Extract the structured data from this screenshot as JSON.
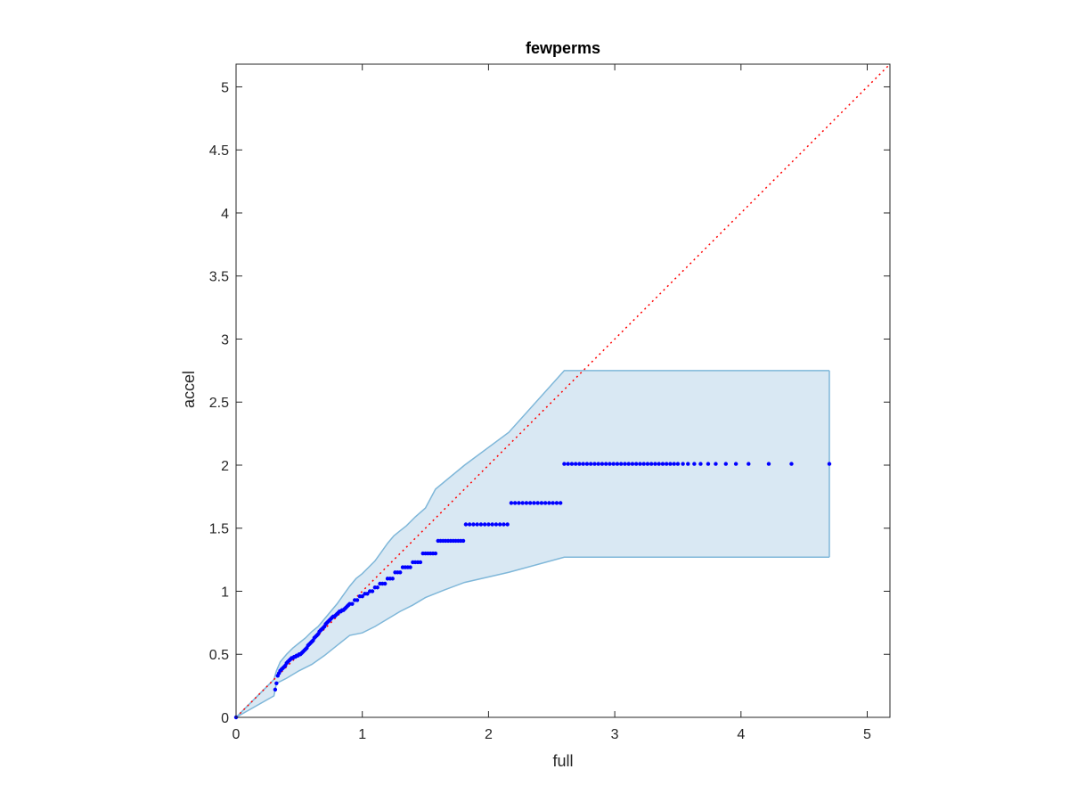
{
  "chart_data": {
    "type": "scatter",
    "title": "fewperms",
    "xlabel": "full",
    "ylabel": "accel",
    "xlim": [
      0,
      5.18
    ],
    "ylim": [
      0,
      5.18
    ],
    "x_ticks": [
      0,
      1,
      2,
      3,
      4,
      5
    ],
    "x_tick_labels": [
      "0",
      "1",
      "2",
      "3",
      "4",
      "5"
    ],
    "y_ticks": [
      0,
      0.5,
      1,
      1.5,
      2,
      2.5,
      3,
      3.5,
      4,
      4.5,
      5
    ],
    "y_tick_labels": [
      "0",
      "0.5",
      "1",
      "1.5",
      "2",
      "2.5",
      "3",
      "3.5",
      "4",
      "4.5",
      "5"
    ],
    "grid": false,
    "colors": {
      "points": "#0000ff",
      "band_fill": "#d9e8f3",
      "band_edge": "#7fb7d9",
      "reference_line": "#ff0000",
      "axes": "#262626"
    },
    "reference_line": {
      "type": "identity",
      "from": [
        0,
        0
      ],
      "to": [
        5.18,
        5.18
      ],
      "style": "dotted"
    },
    "band": {
      "upper": [
        [
          0,
          0
        ],
        [
          0.3,
          0.3
        ],
        [
          0.32,
          0.37
        ],
        [
          0.35,
          0.44
        ],
        [
          0.4,
          0.5
        ],
        [
          0.45,
          0.55
        ],
        [
          0.5,
          0.59
        ],
        [
          0.55,
          0.63
        ],
        [
          0.6,
          0.68
        ],
        [
          0.65,
          0.72
        ],
        [
          0.7,
          0.78
        ],
        [
          0.75,
          0.84
        ],
        [
          0.8,
          0.9
        ],
        [
          0.85,
          0.97
        ],
        [
          0.9,
          1.04
        ],
        [
          0.95,
          1.1
        ],
        [
          1.0,
          1.14
        ],
        [
          1.05,
          1.19
        ],
        [
          1.1,
          1.24
        ],
        [
          1.15,
          1.31
        ],
        [
          1.2,
          1.38
        ],
        [
          1.25,
          1.44
        ],
        [
          1.3,
          1.48
        ],
        [
          1.35,
          1.52
        ],
        [
          1.42,
          1.59
        ],
        [
          1.5,
          1.66
        ],
        [
          1.58,
          1.81
        ],
        [
          1.81,
          2.0
        ],
        [
          2.16,
          2.26
        ],
        [
          2.6,
          2.75
        ],
        [
          4.7,
          2.75
        ]
      ],
      "lower": [
        [
          0,
          0
        ],
        [
          0.3,
          0.17
        ],
        [
          0.32,
          0.27
        ],
        [
          0.4,
          0.31
        ],
        [
          0.5,
          0.37
        ],
        [
          0.6,
          0.42
        ],
        [
          0.7,
          0.49
        ],
        [
          0.8,
          0.57
        ],
        [
          0.85,
          0.61
        ],
        [
          0.9,
          0.65
        ],
        [
          1.0,
          0.67
        ],
        [
          1.1,
          0.72
        ],
        [
          1.2,
          0.78
        ],
        [
          1.3,
          0.84
        ],
        [
          1.4,
          0.89
        ],
        [
          1.5,
          0.95
        ],
        [
          1.65,
          1.01
        ],
        [
          1.81,
          1.07
        ],
        [
          2.16,
          1.15
        ],
        [
          2.6,
          1.27
        ],
        [
          4.7,
          1.27
        ]
      ]
    },
    "series": [
      {
        "x": [
          0,
          0.31,
          0.32,
          0.33,
          0.34,
          0.35,
          0.36,
          0.37,
          0.38,
          0.39,
          0.4,
          0.41,
          0.42,
          0.43,
          0.44,
          0.45,
          0.46,
          0.47,
          0.48,
          0.49,
          0.5,
          0.51,
          0.52,
          0.53,
          0.54,
          0.55,
          0.56,
          0.57,
          0.58,
          0.59,
          0.6,
          0.61,
          0.62,
          0.63,
          0.64,
          0.65,
          0.66,
          0.67,
          0.68,
          0.69,
          0.7,
          0.71,
          0.72,
          0.73,
          0.74,
          0.75,
          0.76,
          0.77,
          0.78,
          0.79,
          0.8,
          0.81,
          0.82,
          0.83,
          0.84,
          0.85,
          0.86,
          0.87,
          0.88,
          0.89,
          0.9,
          0.92,
          0.94,
          0.96,
          0.98,
          1.0,
          1.02,
          1.04,
          1.06,
          1.08,
          1.1,
          1.12,
          1.14,
          1.16,
          1.18,
          1.2,
          1.22,
          1.24,
          1.26,
          1.28,
          1.3,
          1.32,
          1.34,
          1.36,
          1.38,
          1.4,
          1.42,
          1.44,
          1.46,
          1.48,
          1.5,
          1.52,
          1.54,
          1.56,
          1.58,
          1.6,
          1.62,
          1.64,
          1.66,
          1.68,
          1.7,
          1.72,
          1.74,
          1.76,
          1.78,
          1.8,
          1.82,
          1.85,
          1.88,
          1.91,
          1.94,
          1.97,
          2.0,
          2.03,
          2.06,
          2.09,
          2.12,
          2.15,
          2.18,
          2.21,
          2.24,
          2.27,
          2.3,
          2.33,
          2.36,
          2.39,
          2.42,
          2.45,
          2.48,
          2.51,
          2.54,
          2.57,
          2.6,
          2.63,
          2.66,
          2.69,
          2.72,
          2.75,
          2.78,
          2.81,
          2.84,
          2.87,
          2.9,
          2.93,
          2.96,
          2.99,
          3.02,
          3.05,
          3.08,
          3.11,
          3.14,
          3.17,
          3.2,
          3.23,
          3.26,
          3.29,
          3.32,
          3.35,
          3.38,
          3.41,
          3.44,
          3.47,
          3.5,
          3.54,
          3.58,
          3.63,
          3.68,
          3.74,
          3.8,
          3.88,
          3.96,
          4.06,
          4.22,
          4.4,
          4.7
        ],
        "y": [
          0,
          0.22,
          0.27,
          0.33,
          0.35,
          0.37,
          0.38,
          0.39,
          0.4,
          0.41,
          0.43,
          0.44,
          0.45,
          0.46,
          0.47,
          0.47,
          0.48,
          0.48,
          0.49,
          0.49,
          0.5,
          0.5,
          0.51,
          0.52,
          0.53,
          0.54,
          0.55,
          0.57,
          0.58,
          0.59,
          0.6,
          0.61,
          0.63,
          0.64,
          0.65,
          0.66,
          0.68,
          0.69,
          0.7,
          0.71,
          0.72,
          0.74,
          0.75,
          0.76,
          0.77,
          0.78,
          0.79,
          0.8,
          0.8,
          0.81,
          0.82,
          0.83,
          0.84,
          0.84,
          0.85,
          0.85,
          0.86,
          0.87,
          0.88,
          0.89,
          0.9,
          0.9,
          0.93,
          0.93,
          0.96,
          0.96,
          0.98,
          0.98,
          1.0,
          1.0,
          1.03,
          1.03,
          1.06,
          1.06,
          1.06,
          1.1,
          1.1,
          1.1,
          1.15,
          1.15,
          1.15,
          1.19,
          1.19,
          1.19,
          1.19,
          1.23,
          1.23,
          1.23,
          1.23,
          1.3,
          1.3,
          1.3,
          1.3,
          1.3,
          1.3,
          1.4,
          1.4,
          1.4,
          1.4,
          1.4,
          1.4,
          1.4,
          1.4,
          1.4,
          1.4,
          1.4,
          1.53,
          1.53,
          1.53,
          1.53,
          1.53,
          1.53,
          1.53,
          1.53,
          1.53,
          1.53,
          1.53,
          1.53,
          1.7,
          1.7,
          1.7,
          1.7,
          1.7,
          1.7,
          1.7,
          1.7,
          1.7,
          1.7,
          1.7,
          1.7,
          1.7,
          1.7,
          2.01,
          2.01,
          2.01,
          2.01,
          2.01,
          2.01,
          2.01,
          2.01,
          2.01,
          2.01,
          2.01,
          2.01,
          2.01,
          2.01,
          2.01,
          2.01,
          2.01,
          2.01,
          2.01,
          2.01,
          2.01,
          2.01,
          2.01,
          2.01,
          2.01,
          2.01,
          2.01,
          2.01,
          2.01,
          2.01,
          2.01,
          2.01,
          2.01,
          2.01,
          2.01,
          2.01,
          2.01,
          2.01,
          2.01,
          2.01,
          2.01,
          2.01,
          2.01
        ]
      }
    ]
  }
}
